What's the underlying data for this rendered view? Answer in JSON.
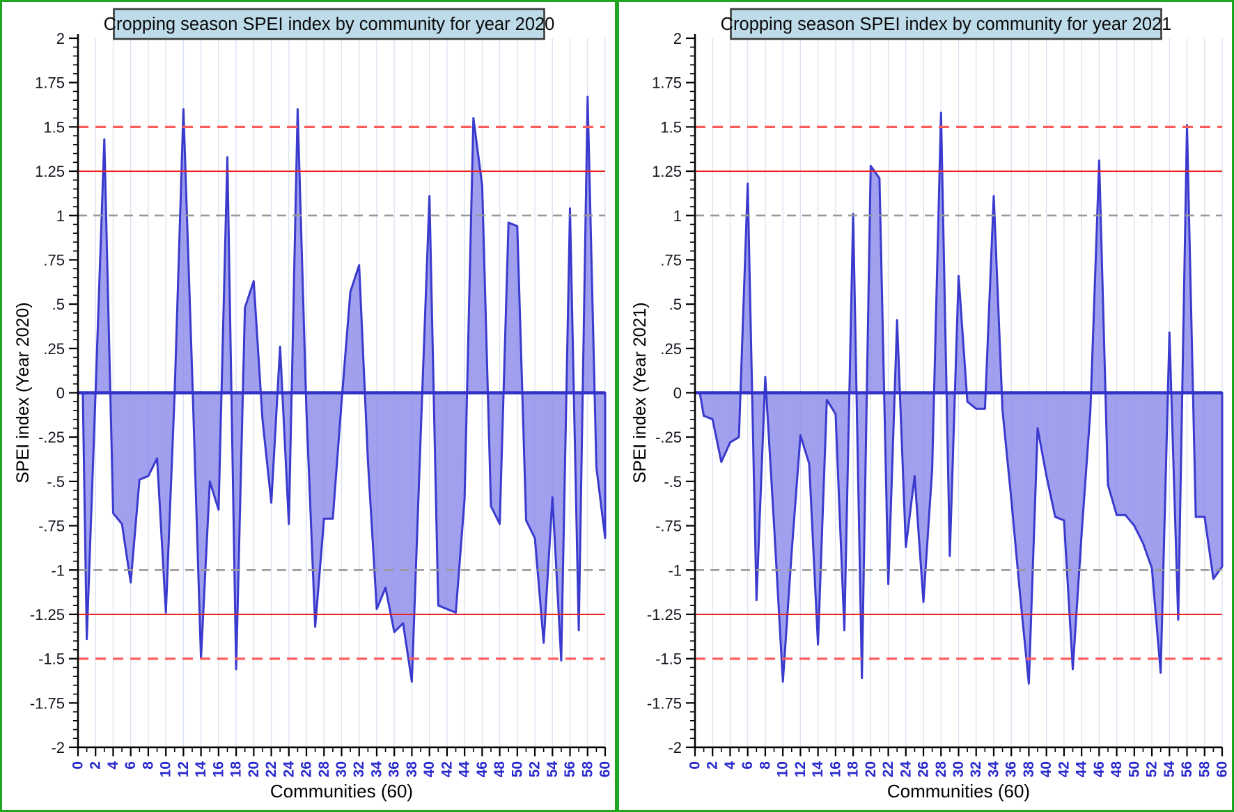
{
  "figure_title": "Cropping season SPEI index by community, years 2020 and 2021",
  "colors": {
    "panel_border_green": "#1fa71f",
    "title_box_fill": "#bedbe9",
    "title_box_border": "#3a3a3a",
    "area_fill": "#8b8bec",
    "area_line": "#3a3ace",
    "zero_line": "#3232c8",
    "grid_line": "#d9e2f0",
    "ref_red_solid": "#ee2222",
    "ref_red_dashed": "#ff5c5c",
    "ref_gray_dashed": "#999999",
    "x_tick_label_color": "#2a2acc",
    "y_tick_label_color": "#14141e",
    "axis_color": "#000000"
  },
  "chart_data": [
    {
      "type": "area",
      "title": "Cropping season SPEI index by community for year 2020",
      "xlabel": "Communities (60)",
      "ylabel": "SPEI index (Year 2020)",
      "xlim": [
        0,
        60
      ],
      "ylim": [
        -2,
        2
      ],
      "grid": "vertical, every 2 communities",
      "legend": "none",
      "y_tick_labels": [
        "2",
        "1.75",
        "1.5",
        "1.25",
        "1",
        ".75",
        ".5",
        ".25",
        "0",
        "-.25",
        "-.5",
        "-.75",
        "-1",
        "-1.25",
        "-1.5",
        "-1.75",
        "-2"
      ],
      "x_tick_labels": [
        "0",
        "2",
        "4",
        "6",
        "8",
        "10",
        "12",
        "14",
        "16",
        "18",
        "20",
        "22",
        "24",
        "26",
        "28",
        "30",
        "32",
        "34",
        "36",
        "38",
        "40",
        "42",
        "44",
        "46",
        "48",
        "50",
        "52",
        "54",
        "56",
        "58",
        "60"
      ],
      "reference_lines": [
        {
          "y": 1.5,
          "style": "dashed",
          "color": "#ff5c5c"
        },
        {
          "y": 1.25,
          "style": "solid",
          "color": "#ee2222"
        },
        {
          "y": 1.0,
          "style": "dashed",
          "color": "#999999"
        },
        {
          "y": -1.0,
          "style": "dashed",
          "color": "#999999"
        },
        {
          "y": -1.25,
          "style": "solid",
          "color": "#ee2222"
        },
        {
          "y": -1.5,
          "style": "dashed",
          "color": "#ff5c5c"
        }
      ],
      "x": [
        1,
        2,
        3,
        4,
        5,
        6,
        7,
        8,
        9,
        10,
        11,
        12,
        13,
        14,
        15,
        16,
        17,
        18,
        19,
        20,
        21,
        22,
        23,
        24,
        25,
        26,
        27,
        28,
        29,
        30,
        31,
        32,
        33,
        34,
        35,
        36,
        37,
        38,
        39,
        40,
        41,
        42,
        43,
        44,
        45,
        46,
        47,
        48,
        49,
        50,
        51,
        52,
        53,
        54,
        55,
        56,
        57,
        58,
        59,
        60
      ],
      "values": [
        -1.39,
        0.0,
        1.43,
        -0.68,
        -0.74,
        -1.07,
        -0.49,
        -0.47,
        -0.37,
        -1.24,
        0.0,
        1.6,
        0.1,
        -1.5,
        -0.5,
        -0.66,
        1.33,
        -1.56,
        0.48,
        0.63,
        -0.15,
        -0.62,
        0.26,
        -0.74,
        1.6,
        -0.1,
        -1.32,
        -0.71,
        -0.71,
        -0.05,
        0.57,
        0.72,
        -0.39,
        -1.22,
        -1.1,
        -1.35,
        -1.3,
        -1.63,
        -0.25,
        1.11,
        -1.2,
        -1.22,
        -1.24,
        -0.6,
        1.55,
        1.17,
        -0.64,
        -0.74,
        0.96,
        0.94,
        -0.72,
        -0.82,
        -1.41,
        -0.59,
        -1.51,
        1.04,
        -1.34,
        1.67,
        -0.42,
        -0.82
      ]
    },
    {
      "type": "area",
      "title": "Cropping season SPEI index by community for year 2021",
      "xlabel": "Communities (60)",
      "ylabel": "SPEI index (Year 2021)",
      "xlim": [
        0,
        60
      ],
      "ylim": [
        -2,
        2
      ],
      "grid": "vertical, every 2 communities",
      "legend": "none",
      "y_tick_labels": [
        "2",
        "1.75",
        "1.5",
        "1.25",
        "1",
        ".75",
        ".5",
        ".25",
        "0",
        "-.25",
        "-.5",
        "-.75",
        "-1",
        "-1.25",
        "-1.5",
        "-1.75",
        "-2"
      ],
      "x_tick_labels": [
        "0",
        "2",
        "4",
        "6",
        "8",
        "10",
        "12",
        "14",
        "16",
        "18",
        "20",
        "22",
        "24",
        "26",
        "28",
        "30",
        "32",
        "34",
        "36",
        "38",
        "40",
        "42",
        "44",
        "46",
        "48",
        "50",
        "52",
        "54",
        "56",
        "58",
        "60"
      ],
      "reference_lines": [
        {
          "y": 1.5,
          "style": "dashed",
          "color": "#ff5c5c"
        },
        {
          "y": 1.25,
          "style": "solid",
          "color": "#ee2222"
        },
        {
          "y": 1.0,
          "style": "dashed",
          "color": "#999999"
        },
        {
          "y": -1.0,
          "style": "dashed",
          "color": "#999999"
        },
        {
          "y": -1.25,
          "style": "solid",
          "color": "#ee2222"
        },
        {
          "y": -1.5,
          "style": "dashed",
          "color": "#ff5c5c"
        }
      ],
      "x": [
        1,
        2,
        3,
        4,
        5,
        6,
        7,
        8,
        9,
        10,
        11,
        12,
        13,
        14,
        15,
        16,
        17,
        18,
        19,
        20,
        21,
        22,
        23,
        24,
        25,
        26,
        27,
        28,
        29,
        30,
        31,
        32,
        33,
        34,
        35,
        36,
        37,
        38,
        39,
        40,
        41,
        42,
        43,
        44,
        45,
        46,
        47,
        48,
        49,
        50,
        51,
        52,
        53,
        54,
        55,
        56,
        57,
        58,
        59,
        60
      ],
      "values": [
        -0.13,
        -0.15,
        -0.39,
        -0.28,
        -0.25,
        1.18,
        -1.17,
        0.09,
        -0.75,
        -1.63,
        -0.9,
        -0.24,
        -0.4,
        -1.42,
        -0.04,
        -0.12,
        -1.34,
        1.01,
        -1.61,
        1.28,
        1.21,
        -1.08,
        0.41,
        -0.87,
        -0.47,
        -1.18,
        -0.43,
        1.58,
        -0.92,
        0.66,
        -0.05,
        -0.09,
        -0.09,
        1.11,
        -0.1,
        -0.6,
        -1.14,
        -1.64,
        -0.2,
        -0.47,
        -0.7,
        -0.72,
        -1.56,
        -0.8,
        -0.1,
        1.31,
        -0.52,
        -0.69,
        -0.69,
        -0.75,
        -0.85,
        -0.99,
        -1.58,
        0.34,
        -1.28,
        1.51,
        -0.7,
        -0.7,
        -1.05,
        -0.98
      ]
    }
  ]
}
